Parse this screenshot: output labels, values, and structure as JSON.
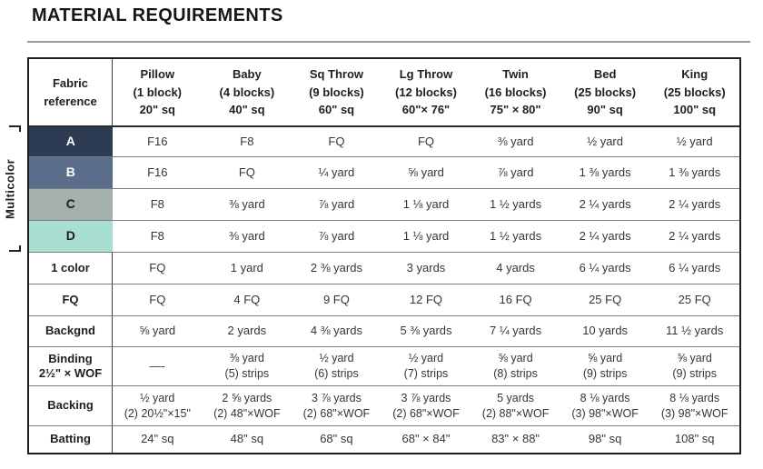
{
  "page": {
    "title": "MATERIAL REQUIREMENTS"
  },
  "colors": {
    "outer_border": "#1d1d1d",
    "grid_line": "#7d7d7d",
    "title_rule": "#9a9a9a",
    "swatch_a": "#2c3a52",
    "swatch_b": "#5a6e8c",
    "swatch_c": "#a4b0ab",
    "swatch_d": "#a9ded3"
  },
  "table": {
    "corner_header": "Fabric\nreference",
    "side_label": "Multicolor",
    "columns": [
      "Pillow\n(1 block)\n20\" sq",
      "Baby\n(4 blocks)\n40\" sq",
      "Sq Throw\n(9 blocks)\n60\" sq",
      "Lg Throw\n(12 blocks)\n60\"× 76\"",
      "Twin\n(16 blocks)\n75\" × 80\"",
      "Bed\n(25 blocks)\n90\" sq",
      "King\n(25 blocks)\n100\" sq"
    ],
    "rows": [
      {
        "label": "A",
        "swatch": "#2c3a52",
        "swatch_text": "#ffffff",
        "cells": [
          "F16",
          "F8",
          "FQ",
          "FQ",
          "⅜ yard",
          "½ yard",
          "½ yard"
        ]
      },
      {
        "label": "B",
        "swatch": "#5a6e8c",
        "swatch_text": "#ffffff",
        "cells": [
          "F16",
          "FQ",
          "¼ yard",
          "⅝ yard",
          "⅞ yard",
          "1 ⅜ yards",
          "1 ⅜ yards"
        ]
      },
      {
        "label": "C",
        "swatch": "#a4b0ab",
        "swatch_text": "#1d1d1d",
        "cells": [
          "F8",
          "⅜ yard",
          "⅞ yard",
          "1 ⅛ yard",
          "1 ½ yards",
          "2 ¼ yards",
          "2 ¼ yards"
        ]
      },
      {
        "label": "D",
        "swatch": "#a9ded3",
        "swatch_text": "#1d1d1d",
        "cells": [
          "F8",
          "⅜ yard",
          "⅞ yard",
          "1 ⅛ yard",
          "1 ½ yards",
          "2 ¼ yards",
          "2 ¼ yards"
        ]
      },
      {
        "label": "1 color",
        "cells": [
          "FQ",
          "1 yard",
          "2 ⅜ yards",
          "3 yards",
          "4 yards",
          "6 ¼ yards",
          "6 ¼ yards"
        ]
      },
      {
        "label": "FQ",
        "cells": [
          "FQ",
          "4 FQ",
          "9 FQ",
          "12 FQ",
          "16 FQ",
          "25 FQ",
          "25 FQ"
        ]
      },
      {
        "label": "Backgnd",
        "cells": [
          "⅝ yard",
          "2 yards",
          "4 ⅜ yards",
          "5 ⅜ yards",
          "7 ¼ yards",
          "10 yards",
          "11 ½ yards"
        ]
      },
      {
        "label": "Binding\n2½\" × WOF",
        "cells": [
          "—-",
          "⅜ yard\n(5) strips",
          "½ yard\n(6) strips",
          "½ yard\n(7) strips",
          "⅝ yard\n(8) strips",
          "⅝ yard\n(9) strips",
          "⅝ yard\n(9) strips"
        ]
      },
      {
        "label": "Backing",
        "cells": [
          "½ yard\n(2) 20½\"×15\"",
          "2 ⅝ yards\n(2) 48\"×WOF",
          "3 ⅞ yards\n(2) 68\"×WOF",
          "3 ⅞ yards\n(2) 68\"×WOF",
          "5 yards\n(2) 88\"×WOF",
          "8 ⅛ yards\n(3) 98\"×WOF",
          "8 ⅛ yards\n(3) 98\"×WOF"
        ]
      },
      {
        "label": "Batting",
        "cells": [
          "24\" sq",
          "48\" sq",
          "68\" sq",
          "68\" × 84\"",
          "83\" × 88\"",
          "98\" sq",
          "108\" sq"
        ]
      }
    ]
  }
}
